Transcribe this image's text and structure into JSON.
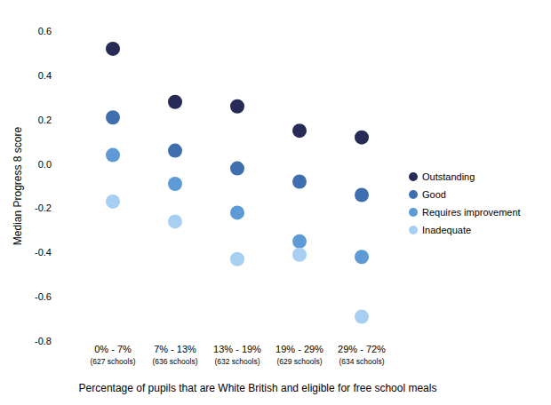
{
  "chart_data": {
    "type": "scatter",
    "x_label": "Percentage of pupils that are White British and eligible for free school meals",
    "y_label": "Median Progress 8 score",
    "categories": [
      "0% - 7%",
      "7% - 13%",
      "13% - 19%",
      "19% - 29%",
      "29% - 72%"
    ],
    "category_sublabels": [
      "(627 schools)",
      "(636 schools)",
      "(632 schools)",
      "(629 schools)",
      "(634 schools)"
    ],
    "series": [
      {
        "name": "Outstanding",
        "color": "#262b57",
        "marker": "circle",
        "values": [
          0.52,
          0.28,
          0.26,
          0.15,
          0.12
        ]
      },
      {
        "name": "Good",
        "color": "#3f6fae",
        "marker": "circle",
        "values": [
          0.21,
          0.06,
          -0.02,
          -0.08,
          -0.14
        ]
      },
      {
        "name": "Requires improvement",
        "color": "#5e9bd6",
        "marker": "circle",
        "values": [
          0.04,
          -0.09,
          -0.22,
          -0.35,
          -0.42
        ]
      },
      {
        "name": "Inadequate",
        "color": "#a6cff1",
        "marker": "circle",
        "values": [
          -0.17,
          -0.26,
          -0.43,
          -0.41,
          -0.69
        ]
      }
    ],
    "ylim": [
      -0.8,
      0.6
    ],
    "yticks": [
      -0.8,
      -0.6,
      -0.4,
      -0.2,
      {
        "value": 0,
        "label": "0.0"
      },
      0.2,
      0.4,
      0.6
    ],
    "grid": false,
    "legend": "right"
  }
}
